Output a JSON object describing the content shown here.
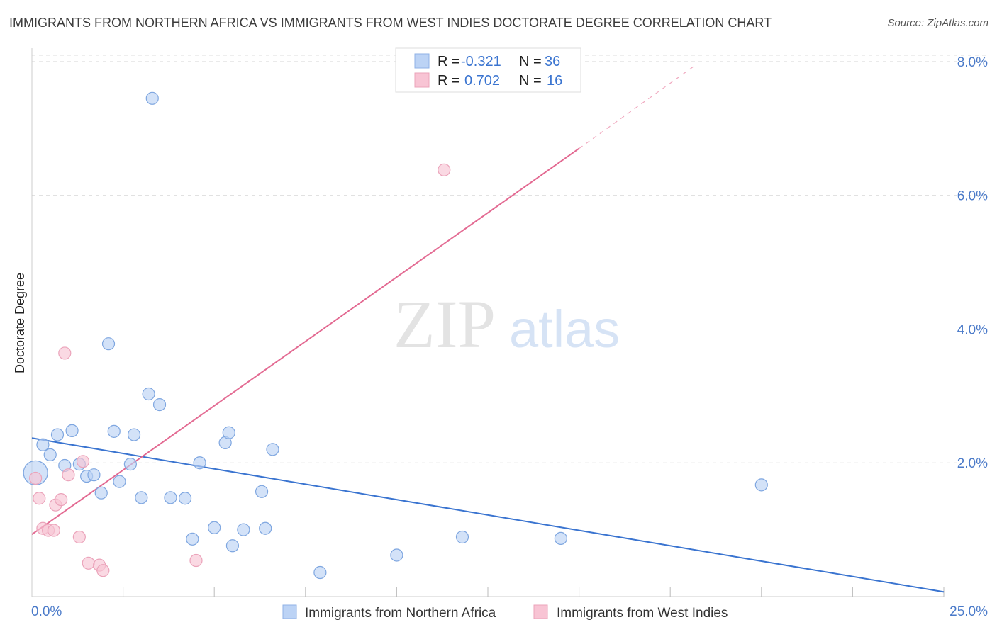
{
  "title": "IMMIGRANTS FROM NORTHERN AFRICA VS IMMIGRANTS FROM WEST INDIES DOCTORATE DEGREE CORRELATION CHART",
  "source": "Source: ZipAtlas.com",
  "watermark": {
    "zip": "ZIP",
    "atlas": "atlas"
  },
  "colors": {
    "blue": "#3a74d0",
    "blue_fill": "#bcd3f5",
    "pink": "#e36a92",
    "pink_fill": "#f8c4d4",
    "grid": "#dddddd",
    "tick_label": "#4a7ac9"
  },
  "legend": {
    "r_label": "R =",
    "n_label": "N =",
    "rows": [
      {
        "r": "-0.321",
        "n": "36",
        "series": "blue"
      },
      {
        "r": "0.702",
        "n": "16",
        "series": "pink"
      }
    ]
  },
  "chart_data": {
    "type": "scatter",
    "title": "IMMIGRANTS FROM NORTHERN AFRICA VS IMMIGRANTS FROM WEST INDIES DOCTORATE DEGREE CORRELATION CHART",
    "xlabel": "",
    "ylabel": "Doctorate Degree",
    "xlim": [
      0,
      25
    ],
    "ylim": [
      0,
      8.2
    ],
    "x_tick_labels": [
      {
        "value": 0,
        "label": "0.0%"
      },
      {
        "value": 25,
        "label": "25.0%"
      }
    ],
    "x_minor_ticks": [
      2.5,
      5,
      7.5,
      10,
      12.5,
      15,
      17.5,
      20,
      22.5,
      25
    ],
    "y_ticks": [
      {
        "value": 2,
        "label": "2.0%"
      },
      {
        "value": 4,
        "label": "4.0%"
      },
      {
        "value": 6,
        "label": "6.0%"
      },
      {
        "value": 8,
        "label": "8.0%"
      }
    ],
    "grid": true,
    "legend_position": "bottom",
    "series": [
      {
        "name": "Immigrants from Northern Africa",
        "color": "blue",
        "points": [
          {
            "x": 0.1,
            "y": 1.85,
            "big": true
          },
          {
            "x": 0.3,
            "y": 2.27
          },
          {
            "x": 0.5,
            "y": 2.12
          },
          {
            "x": 0.7,
            "y": 2.42
          },
          {
            "x": 0.9,
            "y": 1.96
          },
          {
            "x": 1.1,
            "y": 2.48
          },
          {
            "x": 1.3,
            "y": 1.98
          },
          {
            "x": 1.5,
            "y": 1.8
          },
          {
            "x": 1.7,
            "y": 1.82
          },
          {
            "x": 1.9,
            "y": 1.55
          },
          {
            "x": 2.1,
            "y": 3.78
          },
          {
            "x": 2.25,
            "y": 2.47
          },
          {
            "x": 2.4,
            "y": 1.72
          },
          {
            "x": 2.7,
            "y": 1.98
          },
          {
            "x": 2.8,
            "y": 2.42
          },
          {
            "x": 3.0,
            "y": 1.48
          },
          {
            "x": 3.3,
            "y": 7.45
          },
          {
            "x": 3.2,
            "y": 3.03
          },
          {
            "x": 3.5,
            "y": 2.87
          },
          {
            "x": 3.8,
            "y": 1.48
          },
          {
            "x": 4.2,
            "y": 1.47
          },
          {
            "x": 4.4,
            "y": 0.86
          },
          {
            "x": 4.6,
            "y": 2.0
          },
          {
            "x": 5.0,
            "y": 1.03
          },
          {
            "x": 5.3,
            "y": 2.3
          },
          {
            "x": 5.4,
            "y": 2.45
          },
          {
            "x": 5.5,
            "y": 0.76
          },
          {
            "x": 5.8,
            "y": 1.0
          },
          {
            "x": 6.3,
            "y": 1.57
          },
          {
            "x": 6.4,
            "y": 1.02
          },
          {
            "x": 6.6,
            "y": 2.2
          },
          {
            "x": 7.9,
            "y": 0.36
          },
          {
            "x": 10.0,
            "y": 0.62
          },
          {
            "x": 11.8,
            "y": 0.89
          },
          {
            "x": 14.5,
            "y": 0.87
          },
          {
            "x": 20.0,
            "y": 1.67
          }
        ],
        "trend": {
          "x1": 0,
          "y1": 2.37,
          "x2": 25,
          "y2": 0.07
        }
      },
      {
        "name": "Immigrants from West Indies",
        "color": "pink",
        "points": [
          {
            "x": 0.1,
            "y": 1.77
          },
          {
            "x": 0.2,
            "y": 1.47
          },
          {
            "x": 0.3,
            "y": 1.02
          },
          {
            "x": 0.45,
            "y": 0.99
          },
          {
            "x": 0.6,
            "y": 0.99
          },
          {
            "x": 0.65,
            "y": 1.37
          },
          {
            "x": 0.8,
            "y": 1.45
          },
          {
            "x": 0.9,
            "y": 3.64
          },
          {
            "x": 1.0,
            "y": 1.82
          },
          {
            "x": 1.3,
            "y": 0.89
          },
          {
            "x": 1.4,
            "y": 2.02
          },
          {
            "x": 1.55,
            "y": 0.5
          },
          {
            "x": 1.85,
            "y": 0.47
          },
          {
            "x": 1.95,
            "y": 0.39
          },
          {
            "x": 4.5,
            "y": 0.54
          },
          {
            "x": 11.3,
            "y": 6.38
          }
        ],
        "trend": {
          "x1": 0,
          "y1": 0.93,
          "x2": 15,
          "y2": 6.7
        },
        "trend_dashed": {
          "x1": 15,
          "y1": 6.7,
          "x2": 18.2,
          "y2": 7.95
        }
      }
    ]
  }
}
